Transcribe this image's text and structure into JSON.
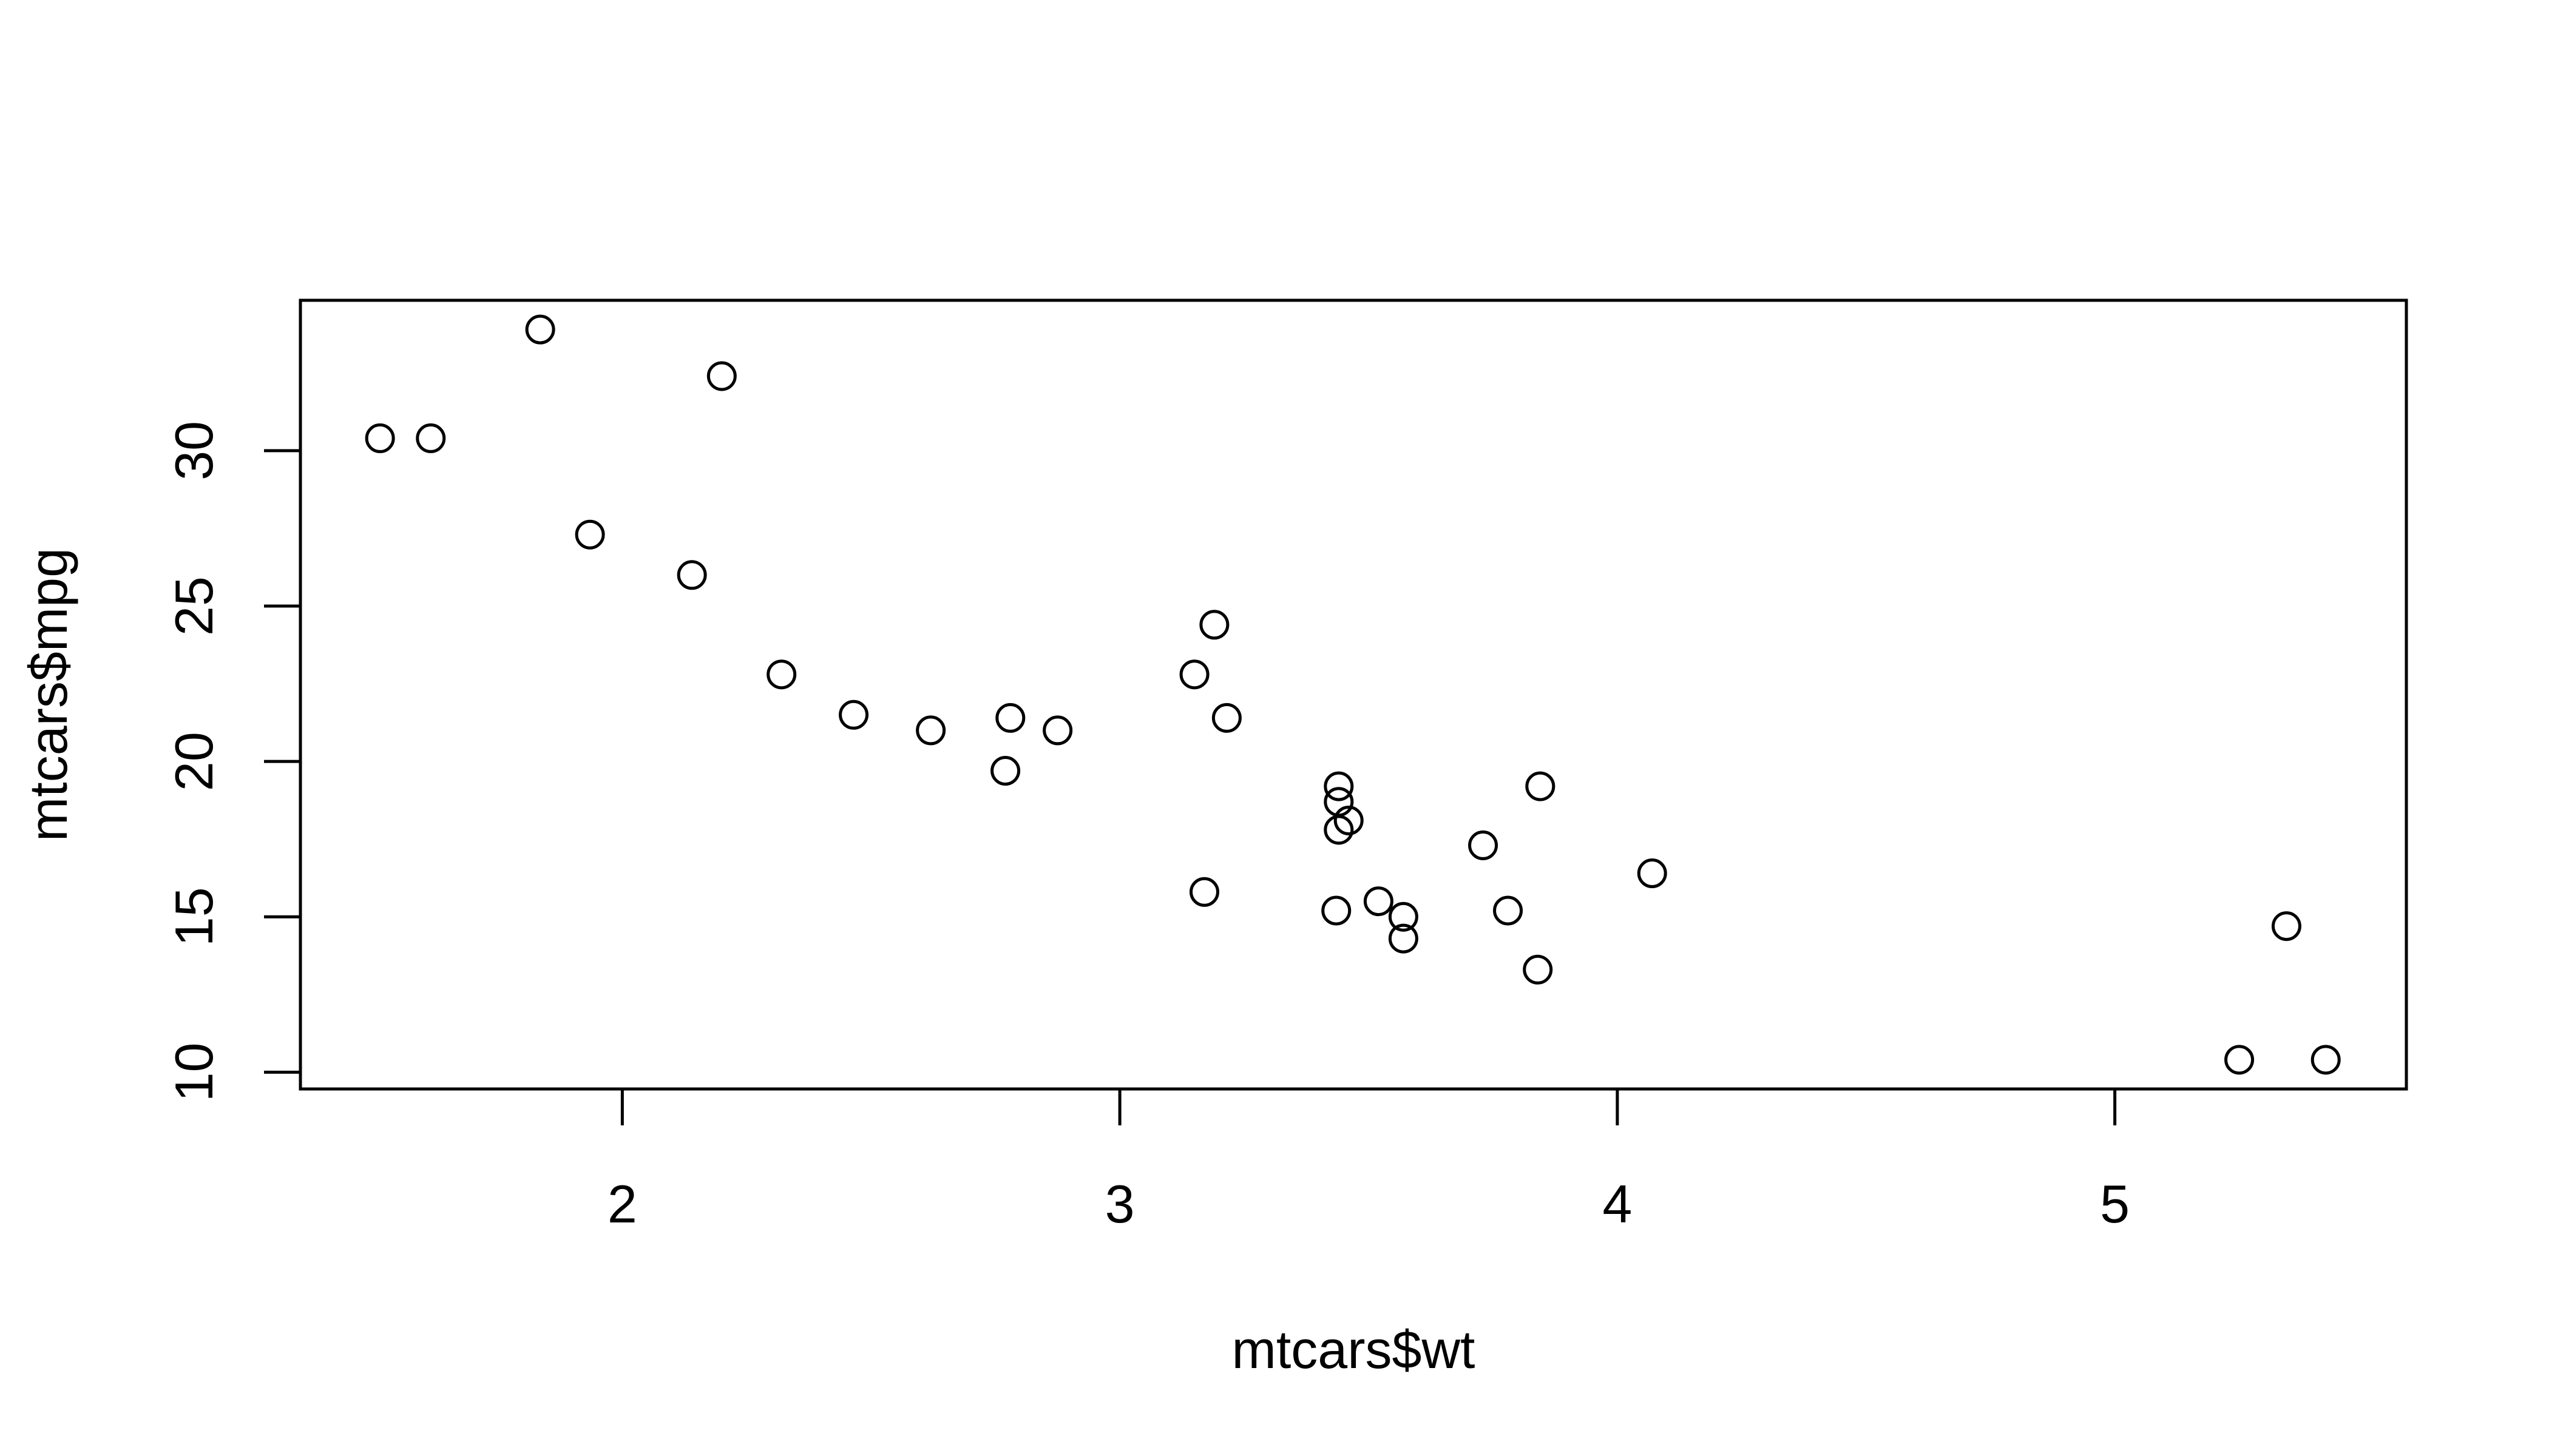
{
  "chart_data": {
    "type": "scatter",
    "title": "",
    "xlabel": "mtcars$wt",
    "ylabel": "mtcars$mpg",
    "xlim": [
      1.353,
      5.586
    ],
    "ylim": [
      9.46,
      34.84
    ],
    "x_ticks": [
      2,
      3,
      4,
      5
    ],
    "y_ticks": [
      10,
      15,
      20,
      25,
      30
    ],
    "x_tick_labels": [
      "2",
      "3",
      "4",
      "5"
    ],
    "y_tick_labels": [
      "10",
      "15",
      "20",
      "25",
      "30"
    ],
    "grid": false,
    "legend": "none",
    "marker": "open-circle",
    "color": "#000000",
    "points": [
      {
        "x": 2.62,
        "y": 21.0
      },
      {
        "x": 2.875,
        "y": 21.0
      },
      {
        "x": 2.32,
        "y": 22.8
      },
      {
        "x": 3.215,
        "y": 21.4
      },
      {
        "x": 3.44,
        "y": 18.7
      },
      {
        "x": 3.46,
        "y": 18.1
      },
      {
        "x": 3.57,
        "y": 14.3
      },
      {
        "x": 3.19,
        "y": 24.4
      },
      {
        "x": 3.15,
        "y": 22.8
      },
      {
        "x": 3.44,
        "y": 19.2
      },
      {
        "x": 3.44,
        "y": 17.8
      },
      {
        "x": 4.07,
        "y": 16.4
      },
      {
        "x": 3.73,
        "y": 17.3
      },
      {
        "x": 3.78,
        "y": 15.2
      },
      {
        "x": 5.25,
        "y": 10.4
      },
      {
        "x": 5.424,
        "y": 10.4
      },
      {
        "x": 5.345,
        "y": 14.7
      },
      {
        "x": 2.2,
        "y": 32.4
      },
      {
        "x": 1.615,
        "y": 30.4
      },
      {
        "x": 1.835,
        "y": 33.9
      },
      {
        "x": 2.465,
        "y": 21.5
      },
      {
        "x": 3.52,
        "y": 15.5
      },
      {
        "x": 3.435,
        "y": 15.2
      },
      {
        "x": 3.84,
        "y": 13.3
      },
      {
        "x": 3.845,
        "y": 19.2
      },
      {
        "x": 1.935,
        "y": 27.3
      },
      {
        "x": 2.14,
        "y": 26.0
      },
      {
        "x": 1.513,
        "y": 30.4
      },
      {
        "x": 3.17,
        "y": 15.8
      },
      {
        "x": 2.77,
        "y": 19.7
      },
      {
        "x": 3.57,
        "y": 15.0
      },
      {
        "x": 2.78,
        "y": 21.4
      }
    ]
  }
}
